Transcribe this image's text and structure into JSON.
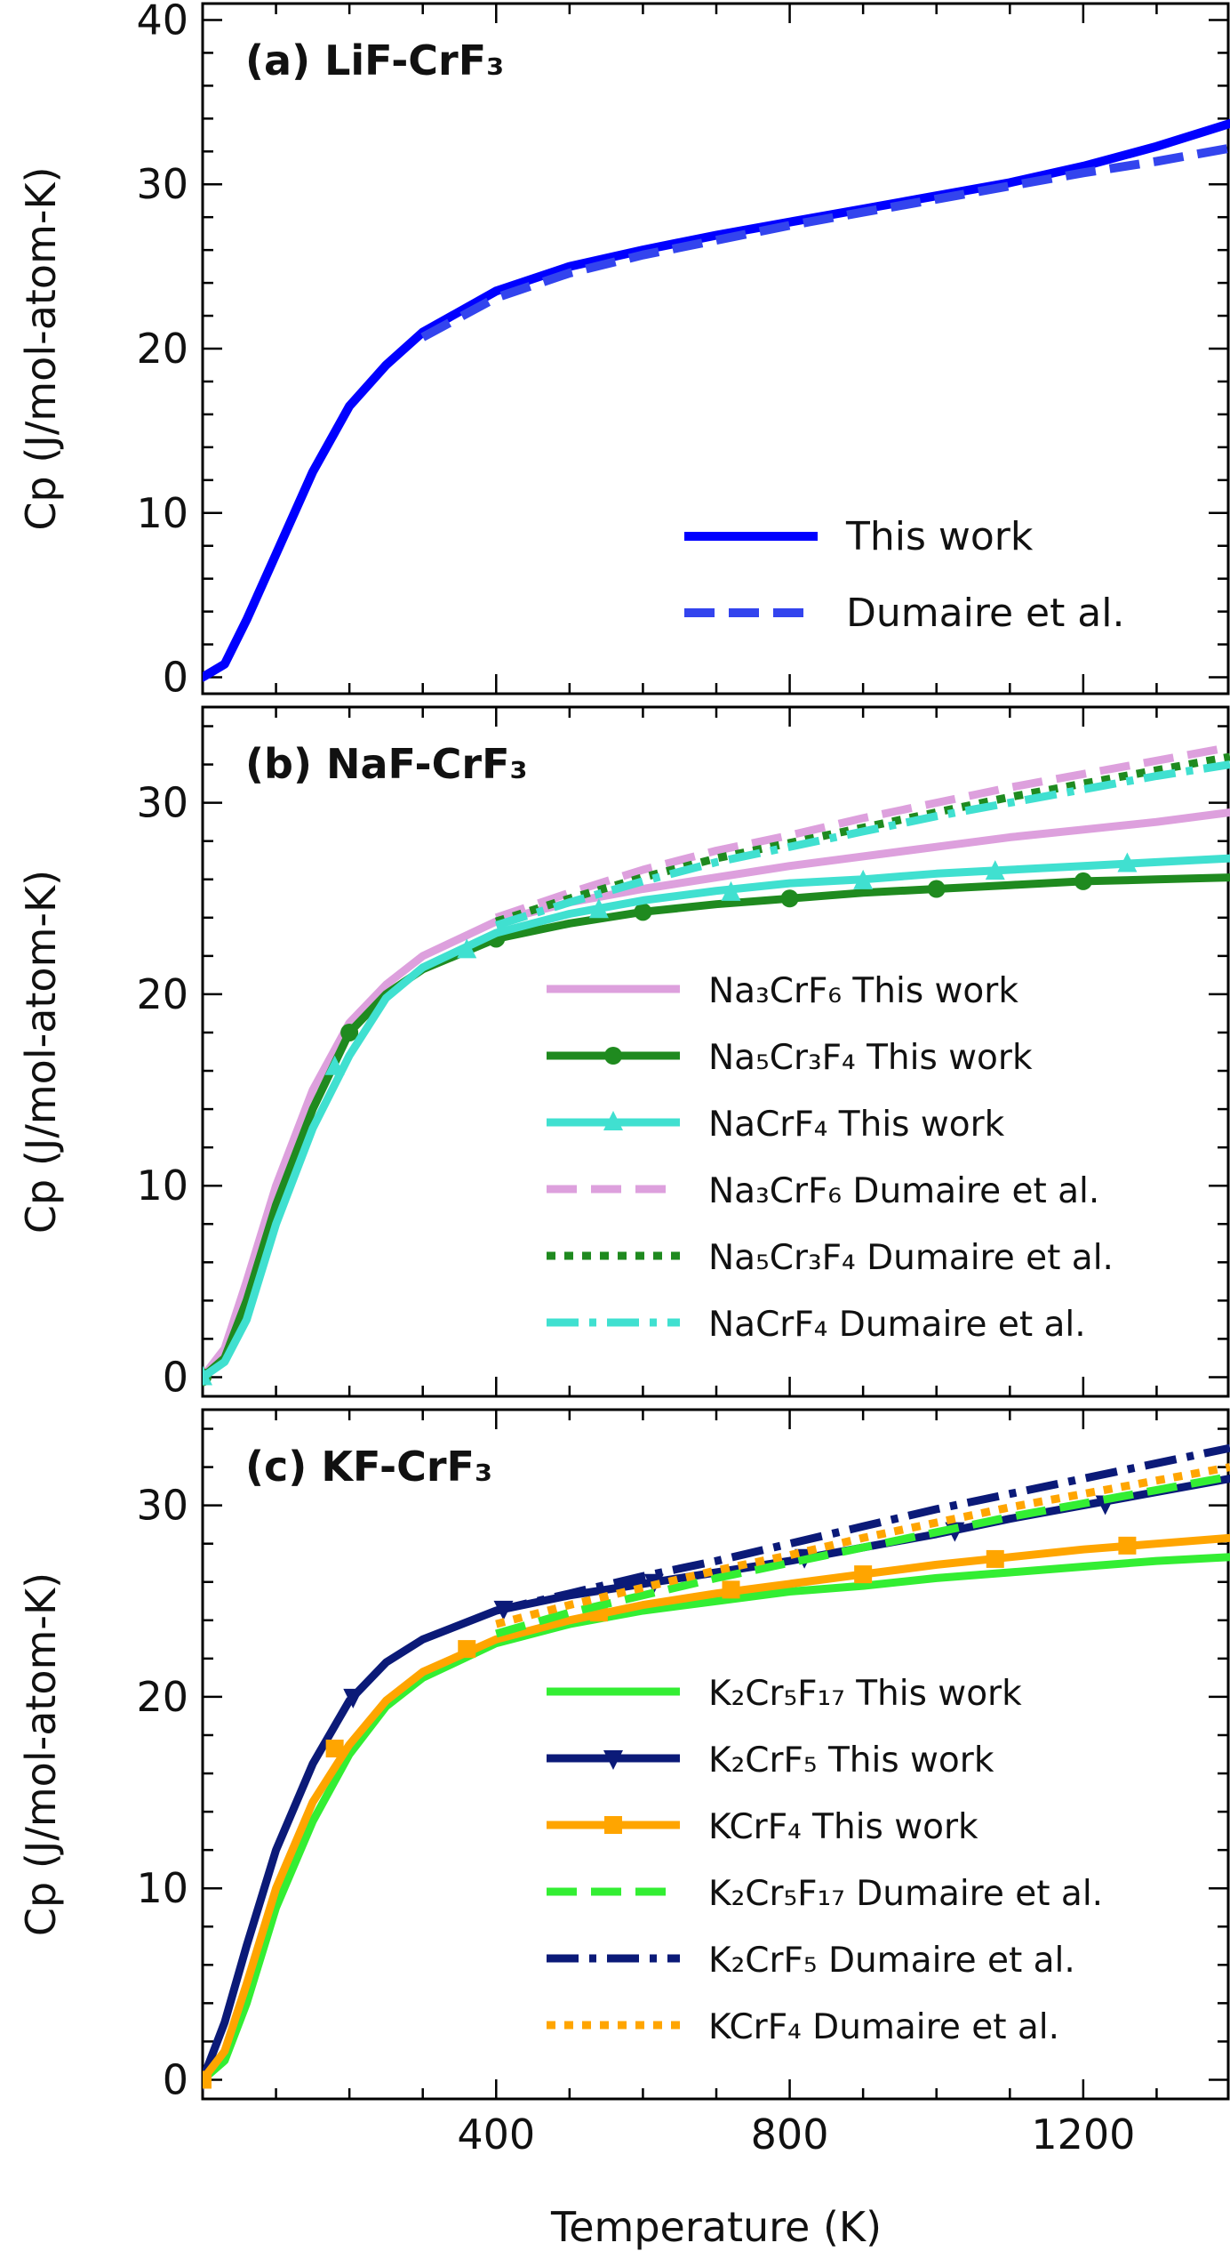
{
  "chart_data": [
    {
      "type": "line",
      "panel": "a",
      "title": "(a) LiF-CrF₃",
      "ylabel": "Cp (J/mol-atom-K)",
      "xlabel": "",
      "xlim": [
        0,
        1400
      ],
      "ylim": [
        -1,
        41
      ],
      "yticks": [
        0,
        10,
        20,
        30,
        40
      ],
      "xticks": [
        400,
        800,
        1200
      ],
      "legend_placement": "lower-right",
      "series": [
        {
          "name": "This work",
          "color": "#0000ff",
          "style": "solid",
          "marker": "none",
          "x": [
            0,
            30,
            60,
            100,
            150,
            200,
            250,
            300,
            400,
            500,
            600,
            700,
            800,
            900,
            1000,
            1100,
            1200,
            1300,
            1400
          ],
          "y": [
            0,
            0.8,
            3.5,
            7.5,
            12.5,
            16.5,
            19,
            21,
            23.5,
            25,
            26,
            26.9,
            27.7,
            28.5,
            29.3,
            30.1,
            31.1,
            32.3,
            33.7
          ]
        },
        {
          "name": "Dumaire et al.",
          "color": "#3344ee",
          "style": "dashed",
          "marker": "none",
          "x": [
            300,
            400,
            500,
            600,
            700,
            800,
            900,
            1000,
            1100,
            1200,
            1300,
            1400
          ],
          "y": [
            20.7,
            23.1,
            24.6,
            25.7,
            26.6,
            27.5,
            28.3,
            29.1,
            29.9,
            30.7,
            31.4,
            32.2
          ]
        }
      ]
    },
    {
      "type": "line",
      "panel": "b",
      "title": "(b) NaF-CrF₃",
      "ylabel": "Cp (J/mol-atom-K)",
      "xlabel": "",
      "xlim": [
        0,
        1400
      ],
      "ylim": [
        -1,
        35
      ],
      "yticks": [
        0,
        10,
        20,
        30
      ],
      "xticks": [
        400,
        800,
        1200
      ],
      "legend_placement": "lower-right",
      "series": [
        {
          "name": "Na₃CrF₆ This work",
          "color": "#dda0dd",
          "style": "solid",
          "marker": "none",
          "x": [
            0,
            30,
            60,
            100,
            150,
            200,
            250,
            300,
            400,
            500,
            600,
            700,
            800,
            900,
            1000,
            1100,
            1200,
            1300,
            1400
          ],
          "y": [
            0,
            1.5,
            5,
            10,
            15,
            18.5,
            20.5,
            22,
            23.8,
            24.8,
            25.5,
            26.1,
            26.7,
            27.2,
            27.7,
            28.2,
            28.6,
            29.0,
            29.5
          ]
        },
        {
          "name": "Na₅Cr₃F₄ This work",
          "color": "#1f8a1f",
          "style": "solid",
          "marker": "circle",
          "x": [
            0,
            30,
            60,
            100,
            150,
            200,
            250,
            300,
            400,
            500,
            600,
            700,
            800,
            900,
            1000,
            1100,
            1200,
            1300,
            1400
          ],
          "y": [
            0,
            1,
            4,
            9,
            14,
            18,
            20,
            21.3,
            22.9,
            23.7,
            24.3,
            24.7,
            25.0,
            25.3,
            25.5,
            25.7,
            25.9,
            26.0,
            26.1
          ],
          "marker_x": [
            0,
            200,
            400,
            600,
            800,
            1000,
            1200
          ],
          "marker_y": [
            0,
            18,
            22.9,
            24.3,
            25.0,
            25.5,
            25.9
          ]
        },
        {
          "name": "NaCrF₄ This work",
          "color": "#40e0d0",
          "style": "solid",
          "marker": "triangle-up",
          "x": [
            0,
            30,
            60,
            100,
            150,
            200,
            250,
            300,
            400,
            500,
            600,
            700,
            800,
            900,
            1000,
            1100,
            1200,
            1300,
            1400
          ],
          "y": [
            0,
            0.8,
            3,
            8,
            13,
            16.8,
            19.8,
            21.4,
            23.2,
            24.2,
            24.9,
            25.4,
            25.8,
            26.0,
            26.3,
            26.5,
            26.7,
            26.9,
            27.1
          ],
          "marker_x": [
            0,
            180,
            360,
            540,
            720,
            900,
            1080,
            1260
          ],
          "marker_y": [
            0,
            16.2,
            22.3,
            24.4,
            25.3,
            25.9,
            26.4,
            26.8
          ]
        },
        {
          "name": "Na₃CrF₆ Dumaire et al.",
          "color": "#dda0dd",
          "style": "dashed",
          "marker": "none",
          "x": [
            400,
            500,
            600,
            700,
            800,
            900,
            1000,
            1100,
            1200,
            1300,
            1400
          ],
          "y": [
            24.0,
            25.3,
            26.5,
            27.5,
            28.3,
            29.2,
            30.0,
            30.8,
            31.5,
            32.2,
            32.9
          ]
        },
        {
          "name": "Na₅Cr₃F₄ Dumaire et al.",
          "color": "#1f8a1f",
          "style": "dotted",
          "marker": "none",
          "x": [
            400,
            500,
            600,
            700,
            800,
            900,
            1000,
            1100,
            1200,
            1300,
            1400
          ],
          "y": [
            23.8,
            25.0,
            26.1,
            27.1,
            27.9,
            28.7,
            29.5,
            30.3,
            31.0,
            31.7,
            32.4
          ]
        },
        {
          "name": "NaCrF₄ Dumaire et al.",
          "color": "#40e0d0",
          "style": "dashdot",
          "marker": "none",
          "x": [
            400,
            500,
            600,
            700,
            800,
            900,
            1000,
            1100,
            1200,
            1300,
            1400
          ],
          "y": [
            23.6,
            24.8,
            25.9,
            26.9,
            27.7,
            28.5,
            29.3,
            30.0,
            30.7,
            31.4,
            32.0
          ]
        }
      ]
    },
    {
      "type": "line",
      "panel": "c",
      "title": "(c) KF-CrF₃",
      "ylabel": "Cp (J/mol-atom-K)",
      "xlabel": "Temperature (K)",
      "xlim": [
        0,
        1400
      ],
      "ylim": [
        -1,
        35
      ],
      "yticks": [
        0,
        10,
        20,
        30
      ],
      "xticks": [
        400,
        800,
        1200
      ],
      "legend_placement": "lower-right",
      "series": [
        {
          "name": "K₂Cr₅F₁₇ This work",
          "color": "#33ee33",
          "style": "solid",
          "marker": "none",
          "x": [
            0,
            30,
            60,
            100,
            150,
            200,
            250,
            300,
            400,
            500,
            600,
            700,
            800,
            900,
            1000,
            1100,
            1200,
            1300,
            1400
          ],
          "y": [
            0,
            1,
            4,
            9,
            13.5,
            17,
            19.5,
            21,
            22.8,
            23.8,
            24.5,
            25.0,
            25.5,
            25.8,
            26.2,
            26.5,
            26.8,
            27.1,
            27.3
          ]
        },
        {
          "name": "K₂CrF₅ This work",
          "color": "#0b1a78",
          "style": "solid",
          "marker": "triangle-down",
          "x": [
            0,
            30,
            60,
            100,
            150,
            200,
            250,
            300,
            400,
            500,
            600,
            700,
            800,
            900,
            1000,
            1100,
            1200,
            1300,
            1400
          ],
          "y": [
            0,
            3,
            7,
            12,
            16.5,
            19.8,
            21.8,
            23.0,
            24.5,
            25.3,
            25.9,
            26.5,
            27.1,
            27.8,
            28.5,
            29.3,
            30.0,
            30.7,
            31.4
          ],
          "marker_x": [
            0,
            205,
            410,
            615,
            820,
            1025,
            1230
          ],
          "marker_y": [
            0,
            20,
            24.6,
            26.0,
            27.3,
            28.7,
            30.1
          ]
        },
        {
          "name": "KCrF₄ This work",
          "color": "#ffa500",
          "style": "solid",
          "marker": "square",
          "x": [
            0,
            30,
            60,
            100,
            150,
            200,
            250,
            300,
            400,
            500,
            600,
            700,
            800,
            900,
            1000,
            1100,
            1200,
            1300,
            1400
          ],
          "y": [
            0,
            1.5,
            5,
            10,
            14.5,
            17.5,
            19.8,
            21.3,
            23.0,
            24.0,
            24.8,
            25.4,
            25.9,
            26.4,
            26.9,
            27.3,
            27.7,
            28.0,
            28.3
          ],
          "marker_x": [
            0,
            180,
            360,
            540,
            720,
            900,
            1080,
            1260
          ],
          "marker_y": [
            0,
            17.3,
            22.5,
            24.4,
            25.6,
            26.4,
            27.2,
            27.9
          ]
        },
        {
          "name": "K₂Cr₅F₁₇ Dumaire et al.",
          "color": "#33ee33",
          "style": "dashed",
          "marker": "none",
          "x": [
            400,
            500,
            600,
            700,
            800,
            900,
            1000,
            1100,
            1200,
            1300,
            1400
          ],
          "y": [
            23.3,
            24.4,
            25.3,
            26.2,
            27.0,
            27.8,
            28.6,
            29.4,
            30.1,
            30.8,
            31.5
          ]
        },
        {
          "name": "K₂CrF₅ Dumaire et al.",
          "color": "#0b1a78",
          "style": "dashdot",
          "marker": "none",
          "x": [
            400,
            500,
            600,
            700,
            800,
            900,
            1000,
            1100,
            1200,
            1300,
            1400
          ],
          "y": [
            24.5,
            25.4,
            26.3,
            27.1,
            28.0,
            28.9,
            29.8,
            30.6,
            31.4,
            32.2,
            33.0
          ]
        },
        {
          "name": "KCrF₄ Dumaire et al.",
          "color": "#ffa500",
          "style": "dotted",
          "marker": "none",
          "x": [
            400,
            500,
            600,
            700,
            800,
            900,
            1000,
            1100,
            1200,
            1300,
            1400
          ],
          "y": [
            23.8,
            24.8,
            25.7,
            26.6,
            27.4,
            28.3,
            29.1,
            29.9,
            30.6,
            31.3,
            32.0
          ]
        }
      ]
    }
  ]
}
